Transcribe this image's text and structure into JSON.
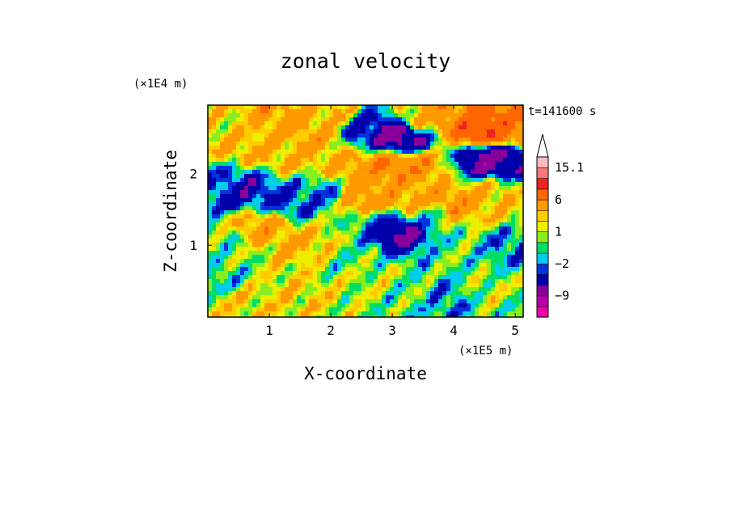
{
  "chart_data": {
    "type": "heatmap",
    "title": "zonal velocity",
    "xlabel": "X-coordinate",
    "ylabel": "Z-coordinate",
    "x_scale_label": "(×1E5 m)",
    "y_scale_label": "(×1E4 m)",
    "time_label": "t=141600 s",
    "xlim": [
      0,
      5.13
    ],
    "ylim": [
      0,
      2.95
    ],
    "x_ticks": [
      1,
      2,
      3,
      4,
      5
    ],
    "x_tick_labels": [
      "1",
      "2",
      "3",
      "4",
      "5"
    ],
    "y_ticks": [
      1,
      2
    ],
    "y_tick_labels": [
      "1",
      "2"
    ],
    "colorbar": {
      "levels": [
        -15,
        -12,
        -9,
        -6,
        -3,
        -2,
        -1,
        0,
        1,
        2,
        3,
        6,
        9,
        12,
        15.1
      ],
      "colors": [
        "#ee00aa",
        "#bb00aa",
        "#880099",
        "#0000aa",
        "#0033dd",
        "#00ccee",
        "#00dd66",
        "#88ee22",
        "#eeee00",
        "#ffcc00",
        "#ff9900",
        "#ff6600",
        "#ee2222",
        "#ff7777",
        "#ffbbbb"
      ],
      "tick_values": [
        15.1,
        6,
        1,
        -2,
        -9
      ],
      "tick_labels": [
        "15.1",
        "6",
        "1",
        "−2",
        "−9"
      ],
      "extend": "max"
    },
    "blobs": [
      {
        "x": 3.05,
        "z": 2.55,
        "v": -8
      },
      {
        "x": 3.25,
        "z": 2.45,
        "v": -7
      },
      {
        "x": 2.55,
        "z": 2.62,
        "v": -4
      },
      {
        "x": 3.9,
        "z": 2.82,
        "v": 5
      },
      {
        "x": 4.4,
        "z": 2.65,
        "v": 7
      },
      {
        "x": 4.45,
        "z": 2.6,
        "v": 10
      },
      {
        "x": 4.95,
        "z": 2.55,
        "v": 6
      },
      {
        "x": 4.5,
        "z": 2.2,
        "v": -7
      },
      {
        "x": 4.85,
        "z": 2.22,
        "v": -6
      },
      {
        "x": 3.4,
        "z": 2.15,
        "v": 5
      },
      {
        "x": 2.95,
        "z": 2.1,
        "v": 6
      },
      {
        "x": 2.45,
        "z": 2.05,
        "v": 4
      },
      {
        "x": 3.45,
        "z": 2.75,
        "v": 3
      },
      {
        "x": 1.4,
        "z": 2.25,
        "v": 3
      },
      {
        "x": 1.75,
        "z": 2.55,
        "v": 4
      },
      {
        "x": 0.6,
        "z": 2.35,
        "v": 3
      },
      {
        "x": 0.45,
        "z": 2.65,
        "v": 2
      },
      {
        "x": 1.0,
        "z": 2.75,
        "v": 4
      },
      {
        "x": 2.0,
        "z": 2.8,
        "v": 3
      },
      {
        "x": 0.25,
        "z": 1.85,
        "v": -2
      },
      {
        "x": 0.5,
        "z": 1.78,
        "v": -5
      },
      {
        "x": 1.3,
        "z": 1.6,
        "v": -3
      },
      {
        "x": 1.85,
        "z": 1.7,
        "v": -2
      },
      {
        "x": 2.55,
        "z": 1.6,
        "v": 5
      },
      {
        "x": 3.0,
        "z": 1.65,
        "v": 4
      },
      {
        "x": 3.35,
        "z": 1.6,
        "v": 4
      },
      {
        "x": 3.15,
        "z": 1.2,
        "v": -7
      },
      {
        "x": 2.75,
        "z": 1.35,
        "v": -2
      },
      {
        "x": 3.6,
        "z": 1.4,
        "v": -1
      },
      {
        "x": 4.0,
        "z": 1.55,
        "v": 5
      },
      {
        "x": 4.55,
        "z": 1.65,
        "v": 3
      },
      {
        "x": 4.9,
        "z": 1.55,
        "v": 2
      },
      {
        "x": 4.85,
        "z": 1.0,
        "v": -2
      },
      {
        "x": 4.1,
        "z": 0.9,
        "v": 0
      },
      {
        "x": 0.9,
        "z": 1.25,
        "v": 4
      },
      {
        "x": 0.3,
        "z": 1.0,
        "v": 0
      },
      {
        "x": 1.6,
        "z": 1.0,
        "v": 3
      },
      {
        "x": 2.25,
        "z": 0.8,
        "v": 0
      },
      {
        "x": 2.6,
        "z": 0.5,
        "v": 1
      },
      {
        "x": 3.3,
        "z": 0.3,
        "v": 0
      },
      {
        "x": 0.5,
        "z": 0.2,
        "v": 2
      },
      {
        "x": 1.4,
        "z": 0.35,
        "v": 2
      },
      {
        "x": 3.9,
        "z": 0.25,
        "v": -2
      },
      {
        "x": 4.6,
        "z": 0.35,
        "v": 1
      },
      {
        "x": 5.0,
        "z": 0.2,
        "v": 0
      },
      {
        "x": 0.15,
        "z": 0.5,
        "v": -1
      }
    ],
    "grid": false,
    "legend": "right colorbar"
  }
}
